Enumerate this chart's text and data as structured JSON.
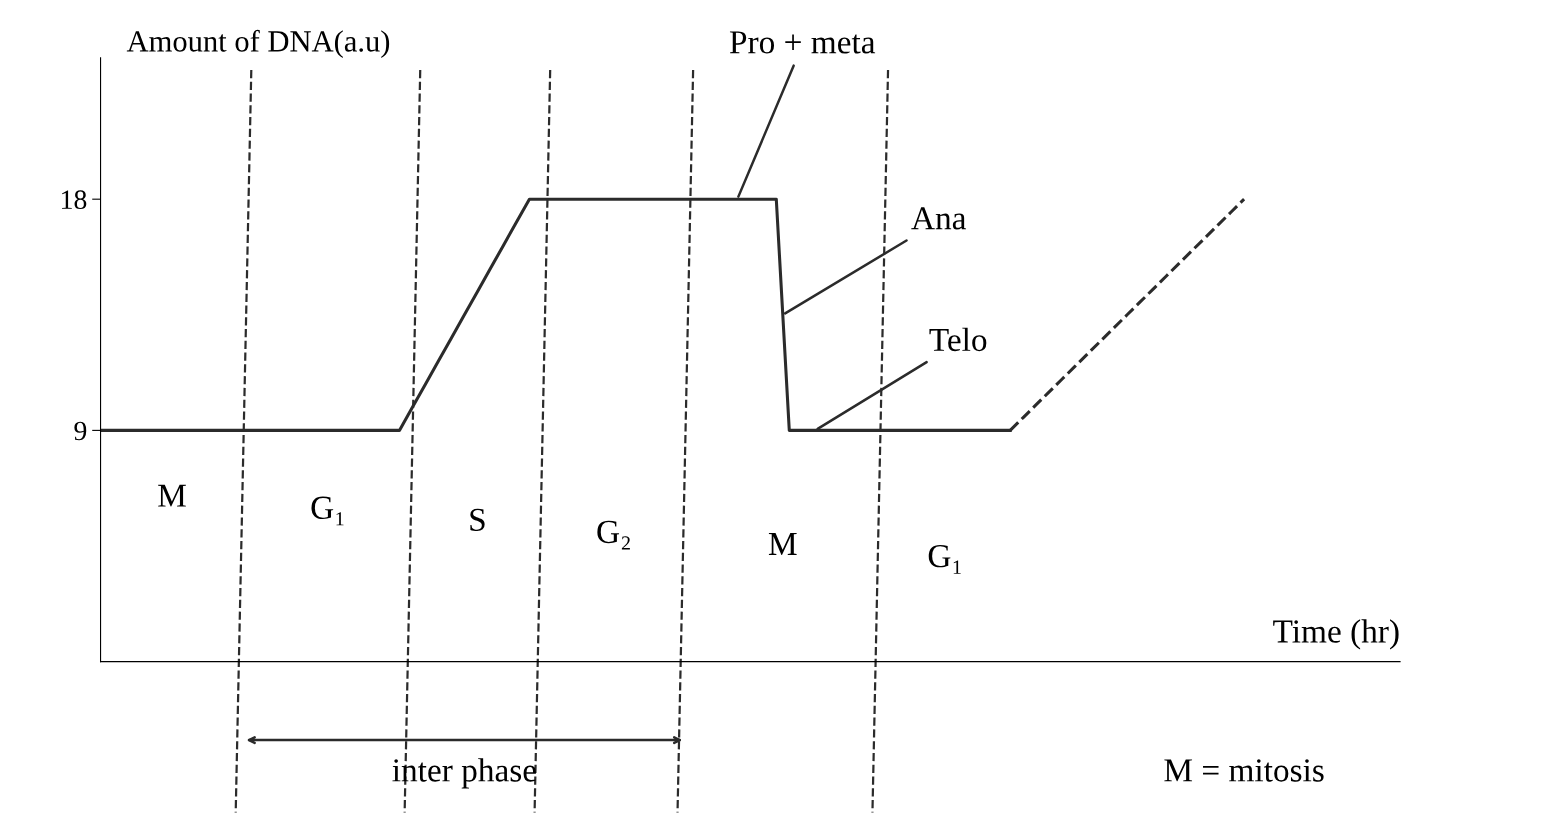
{
  "chart_data": {
    "type": "line",
    "xlabel": "Time (hr)",
    "ylabel": "Amount of DNA(a.u)",
    "categories": [
      null,
      null,
      null,
      null,
      null,
      null,
      null,
      null,
      null,
      null,
      null,
      null,
      null,
      null,
      null,
      null,
      null,
      null,
      null,
      null,
      null,
      null,
      null,
      null,
      null,
      null,
      null,
      null,
      null,
      null,
      null,
      null,
      null,
      null,
      null,
      null,
      null,
      null,
      null,
      null,
      null,
      null,
      null,
      null,
      null,
      null,
      null,
      null,
      null,
      null,
      null,
      null,
      null,
      null,
      null,
      null,
      null,
      null,
      null,
      null,
      null,
      null,
      null,
      null,
      null,
      null,
      null,
      null,
      null,
      null,
      null,
      null,
      null,
      null,
      null,
      null,
      null,
      null,
      null,
      null,
      null,
      null,
      null,
      null,
      null,
      null,
      null,
      null,
      null,
      null,
      null,
      null,
      null,
      null,
      null,
      null,
      null,
      null,
      null,
      null,
      null
    ],
    "series": [
      {
        "color": "#2b2b2b",
        "line_style": "solid",
        "values": [
          9,
          9,
          9,
          9,
          9,
          9,
          9,
          9,
          9,
          9,
          9,
          9,
          9,
          9,
          9,
          9,
          9,
          9,
          9,
          9,
          9,
          9,
          9,
          9,
          9.9,
          10.8,
          11.7,
          12.6,
          13.5,
          14.4,
          15.3,
          16.2,
          17.1,
          18,
          18,
          18,
          18,
          18,
          18,
          18,
          18,
          18,
          18,
          18,
          18,
          18,
          18,
          18,
          18,
          18,
          18,
          18,
          18,
          9,
          9,
          9,
          9,
          9,
          9,
          9,
          9,
          9,
          9,
          9,
          9,
          9,
          9,
          9,
          9,
          9,
          9,
          null,
          null,
          null,
          null,
          null,
          null,
          null,
          null,
          null,
          null,
          null,
          null,
          null,
          null,
          null,
          null,
          null,
          null,
          null,
          null,
          null,
          null,
          null,
          null,
          null,
          null,
          null,
          null,
          null,
          null
        ]
      },
      {
        "color": "#2b2b2b",
        "line_style": "dashed",
        "values": [
          null,
          null,
          null,
          null,
          null,
          null,
          null,
          null,
          null,
          null,
          null,
          null,
          null,
          null,
          null,
          null,
          null,
          null,
          null,
          null,
          null,
          null,
          null,
          null,
          null,
          null,
          null,
          null,
          null,
          null,
          null,
          null,
          null,
          null,
          null,
          null,
          null,
          null,
          null,
          null,
          null,
          null,
          null,
          null,
          null,
          null,
          null,
          null,
          null,
          null,
          null,
          null,
          null,
          null,
          null,
          null,
          null,
          null,
          null,
          null,
          null,
          null,
          null,
          null,
          null,
          null,
          null,
          null,
          null,
          null,
          9,
          9.5,
          10,
          10.5,
          11,
          11.5,
          12,
          12.5,
          13,
          13.5,
          14,
          14.5,
          15,
          15.5,
          16,
          16.5,
          17,
          17.5,
          18,
          null,
          null,
          null,
          null,
          null,
          null,
          null,
          null,
          null,
          null,
          null,
          null
        ]
      }
    ],
    "ylim": [
      0,
      23.5
    ],
    "yticks": [
      9,
      18
    ],
    "tick_labels": "y",
    "grid": false,
    "legend": false,
    "marker": "none",
    "annotations": [
      "M",
      "G₁",
      "S",
      "G₂",
      "M",
      "G₁",
      "Pro + meta",
      "Ana",
      "Telo",
      "inter phase",
      "M = mitosis"
    ]
  }
}
